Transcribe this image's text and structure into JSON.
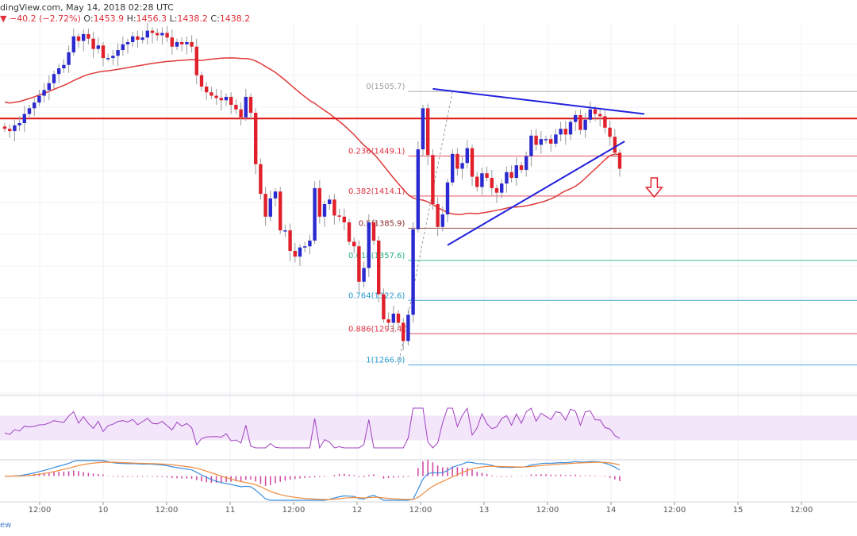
{
  "header": {
    "source": "dingView.com, May 14, 2018 02:28 UTC",
    "arrow": "▼",
    "change": "−40.2 (−2.72%)",
    "open": "1453.9",
    "high": "1456.3",
    "low": "1438.2",
    "close": "1438.2",
    "o_label": "O:",
    "h_label": "H:",
    "l_label": "L:",
    "c_label": "C:"
  },
  "footer": {
    "brand_fragment": "ew"
  },
  "colors": {
    "up": "#2a2ad0",
    "down": "#e0202a",
    "ma": "#e03a3a",
    "resistance": "#e01010",
    "trendline": "#2222dd",
    "rsi_band": "#f3e6fb",
    "macd_line": "#3b8fe0",
    "signal_line": "#f08a3a",
    "histogram": "#d040a0",
    "grid": "#eef0f4"
  },
  "chart_data": {
    "type": "candlestick",
    "symbol_note": "ETH/USD 1h",
    "x_tick_labels": [
      "12:00",
      "10",
      "12:00",
      "11",
      "12:00",
      "12",
      "12:00",
      "13",
      "12:00",
      "14",
      "12:00",
      "15",
      "12:00"
    ],
    "y_range": [
      1240,
      1565
    ],
    "resistance_level": 1482,
    "fib_levels": [
      {
        "ratio": "0",
        "price": "1505.7",
        "label": "0(1505.7)"
      },
      {
        "ratio": "0.236",
        "price": "1449.1",
        "label": "0.236(1449.1)"
      },
      {
        "ratio": "0.382",
        "price": "1414.1",
        "label": "0.382(1414.1)"
      },
      {
        "ratio": "0.5",
        "price": "1385.9",
        "label": "0.5(1385.9)"
      },
      {
        "ratio": "0.618",
        "price": "1357.6",
        "label": "0.618(1357.6)"
      },
      {
        "ratio": "0.764",
        "price": "1322.6",
        "label": "0.764(1322.6)"
      },
      {
        "ratio": "0.886",
        "price": "1293.4",
        "label": "0.886(1293.4)"
      },
      {
        "ratio": "1",
        "price": "1266.0",
        "label": "1(1266.0)"
      }
    ],
    "closes": [
      1473,
      1471,
      1476,
      1478,
      1486,
      1491,
      1496,
      1502,
      1507,
      1513,
      1521,
      1526,
      1529,
      1540,
      1554,
      1550,
      1556,
      1552,
      1543,
      1546,
      1535,
      1535,
      1537,
      1542,
      1547,
      1549,
      1554,
      1551,
      1553,
      1559,
      1557,
      1555,
      1557,
      1553,
      1545,
      1549,
      1547,
      1549,
      1545,
      1520,
      1510,
      1505,
      1502,
      1500,
      1498,
      1501,
      1494,
      1490,
      1483,
      1501,
      1487,
      1442,
      1416,
      1396,
      1412,
      1418,
      1384,
      1384,
      1366,
      1361,
      1369,
      1370,
      1375,
      1421,
      1396,
      1407,
      1411,
      1397,
      1396,
      1391,
      1374,
      1370,
      1339,
      1351,
      1391,
      1375,
      1328,
      1306,
      1303,
      1311,
      1303,
      1287,
      1310,
      1385,
      1455,
      1491,
      1450,
      1407,
      1387,
      1398,
      1426,
      1451,
      1438,
      1443,
      1456,
      1431,
      1422,
      1434,
      1430,
      1421,
      1417,
      1425,
      1435,
      1430,
      1441,
      1437,
      1449,
      1467,
      1459,
      1464,
      1464,
      1460,
      1468,
      1473,
      1468,
      1479,
      1485,
      1472,
      1481,
      1490,
      1486,
      1484,
      1474,
      1466,
      1452,
      1438
    ],
    "rsi_range": [
      0,
      100
    ],
    "rsi_bands": [
      30,
      70
    ],
    "macd_range": [
      -28,
      18
    ]
  }
}
